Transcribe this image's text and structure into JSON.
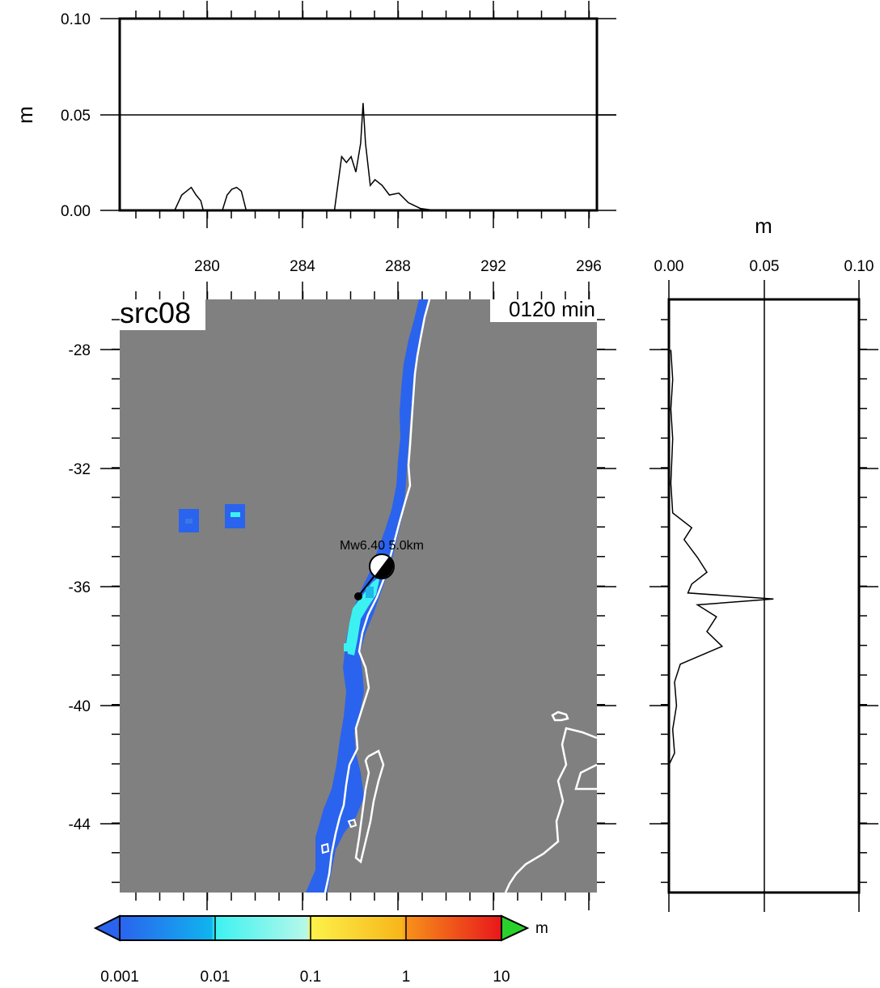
{
  "top_panel": {
    "unit": "m",
    "y_ticks": [
      "0.10",
      "0.05",
      "0.00"
    ]
  },
  "map": {
    "source_label": "src08",
    "time_label": "0120 min",
    "quake_label": "Mw6.40  5.0km",
    "lon_ticks": [
      "280",
      "284",
      "288",
      "292",
      "296"
    ],
    "lat_ticks": [
      "-28",
      "-32",
      "-36",
      "-40",
      "-44"
    ],
    "colors": {
      "land": "#808080",
      "deep_blue": "#2a63ee",
      "cyan": "#3cf2f0",
      "coast": "#ffffff"
    }
  },
  "side_panel": {
    "unit": "m",
    "x_ticks": [
      "0.00",
      "0.05",
      "0.10"
    ]
  },
  "colorbar": {
    "unit": "m",
    "labels": [
      "0.001",
      "0.01",
      "0.1",
      "1",
      "10"
    ],
    "colors": [
      "#2a63ee",
      "#3cf2f0",
      "#fdf24a",
      "#f7a21a",
      "#e8171b",
      "#28d22b"
    ]
  },
  "chart_data": {
    "type": "line",
    "top_profile": {
      "xlabel": "",
      "ylabel": "m",
      "xlim": [
        276.3,
        296.3
      ],
      "ylim": [
        0,
        0.1
      ],
      "x": [
        278.6,
        278.9,
        279.1,
        279.3,
        279.5,
        279.7,
        279.8,
        280.6,
        280.8,
        281.0,
        281.2,
        281.4,
        281.6,
        285.3,
        285.6,
        285.8,
        286.0,
        286.2,
        286.4,
        286.5,
        286.6,
        286.8,
        287.0,
        287.3,
        287.6,
        288.0,
        288.4,
        288.9,
        289.5
      ],
      "y": [
        0.0,
        0.008,
        0.01,
        0.012,
        0.008,
        0.005,
        0.0,
        0.0,
        0.008,
        0.011,
        0.012,
        0.01,
        0.0,
        0.0,
        0.028,
        0.025,
        0.028,
        0.02,
        0.035,
        0.056,
        0.035,
        0.013,
        0.016,
        0.013,
        0.008,
        0.009,
        0.004,
        0.001,
        0.0
      ]
    },
    "side_profile": {
      "xlabel": "m",
      "ylabel": "",
      "xlim": [
        0,
        0.1
      ],
      "ylim": [
        -46.3,
        -26.3
      ],
      "y": [
        -28.0,
        -29.0,
        -30.0,
        -31.0,
        -32.5,
        -33.5,
        -34.0,
        -34.4,
        -35.0,
        -35.5,
        -35.9,
        -36.2,
        -36.4,
        -36.6,
        -37.0,
        -37.5,
        -38.0,
        -38.6,
        -39.2,
        -40.0,
        -40.8,
        -41.6,
        -42.0
      ],
      "x": [
        0.001,
        0.002,
        0.001,
        0.002,
        0.001,
        0.002,
        0.012,
        0.008,
        0.015,
        0.02,
        0.012,
        0.01,
        0.055,
        0.015,
        0.025,
        0.02,
        0.028,
        0.006,
        0.003,
        0.004,
        0.002,
        0.003,
        0.0
      ]
    }
  }
}
